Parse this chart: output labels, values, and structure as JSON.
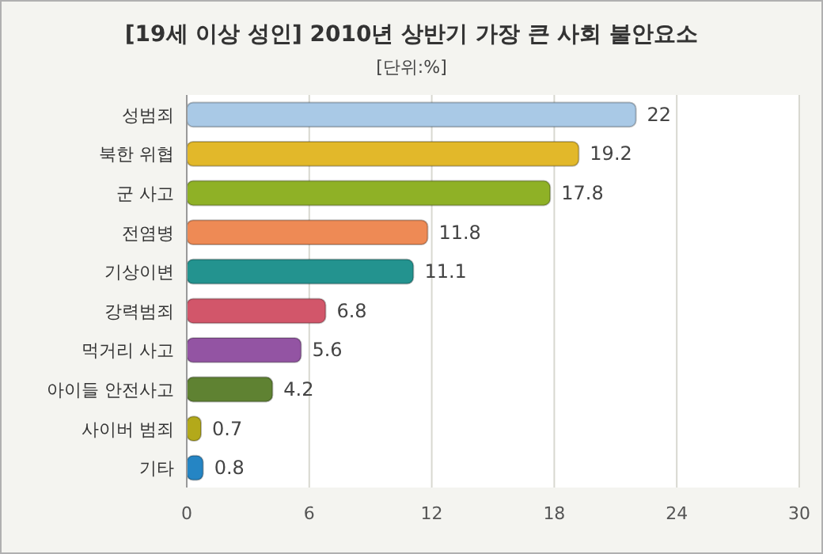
{
  "chart_data": {
    "type": "bar",
    "orientation": "horizontal",
    "title": "[19세 이상 성인] 2010년 상반기 가장 큰 사회 불안요소",
    "subtitle": "[단위:%]",
    "categories": [
      "성범죄",
      "북한 위협",
      "군 사고",
      "전염병",
      "기상이변",
      "강력범죄",
      "먹거리 사고",
      "아이들 안전사고",
      "사이버 범죄",
      "기타"
    ],
    "values": [
      22,
      19.2,
      17.8,
      11.8,
      11.1,
      6.8,
      5.6,
      4.2,
      0.7,
      0.8
    ],
    "colors": [
      "#a9c9e6",
      "#e2b82a",
      "#8fb126",
      "#ee8a55",
      "#23938f",
      "#d2566a",
      "#9354a3",
      "#5f8232",
      "#b3a91a",
      "#2585c4"
    ],
    "xlim": [
      0,
      30
    ],
    "xticks": [
      0,
      6,
      12,
      18,
      24,
      30
    ],
    "grid": "x",
    "data_labels": true
  }
}
